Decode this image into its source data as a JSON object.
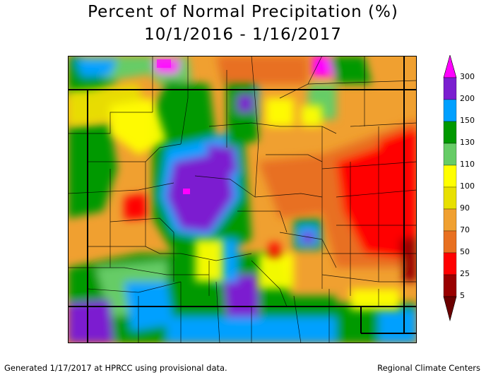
{
  "title_line1": "Percent of Normal Precipitation (%)",
  "title_line2": "10/1/2016 - 1/16/2017",
  "legend": {
    "labels": [
      "300",
      "200",
      "150",
      "130",
      "110",
      "100",
      "90",
      "70",
      "50",
      "25",
      "5"
    ],
    "colors": {
      "c300": "#ff00ff",
      "c200": "#7b1fd0",
      "c150": "#00a0ff",
      "c130": "#009900",
      "c110": "#66cc66",
      "c100": "#ffff00",
      "c90": "#e8e000",
      "c70": "#f0a030",
      "c50": "#e87020",
      "c25": "#ff0000",
      "c5": "#990000"
    }
  },
  "footer": {
    "left": "Generated 1/17/2017 at HPRCC using provisional data.",
    "right": "Regional Climate Centers"
  }
}
